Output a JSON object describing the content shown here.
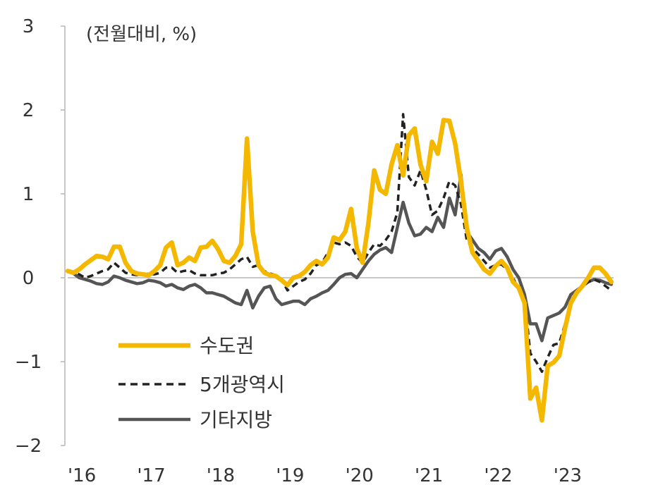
{
  "chart_data": {
    "type": "line",
    "title": "",
    "unit_label": "(전월대비, %)",
    "xlabel": "",
    "ylabel": "",
    "ylim": [
      -2,
      3
    ],
    "yticks": [
      3,
      2,
      1,
      0,
      -1,
      -2
    ],
    "ytick_labels": [
      "3",
      "2",
      "1",
      "0",
      "−1",
      "−2"
    ],
    "xticks": [
      "'16",
      "'17",
      "'18",
      "'19",
      "'20",
      "'21",
      "'22",
      "'23"
    ],
    "x_start": "2016-01",
    "grid": false,
    "legend_position": "lower-left",
    "series": [
      {
        "name": "수도권",
        "color": "#F5B800",
        "style": "solid",
        "values": [
          0.08,
          0.06,
          0.1,
          0.16,
          0.21,
          0.26,
          0.25,
          0.22,
          0.37,
          0.37,
          0.18,
          0.08,
          0.05,
          0.04,
          0.03,
          0.08,
          0.15,
          0.36,
          0.42,
          0.15,
          0.18,
          0.24,
          0.2,
          0.36,
          0.37,
          0.44,
          0.34,
          0.2,
          0.18,
          0.26,
          0.4,
          1.66,
          0.55,
          0.15,
          0.06,
          0.03,
          0.02,
          -0.03,
          -0.09,
          0.0,
          0.02,
          0.07,
          0.15,
          0.2,
          0.16,
          0.24,
          0.48,
          0.45,
          0.55,
          0.82,
          0.35,
          0.18,
          0.65,
          1.28,
          1.05,
          1.0,
          1.35,
          1.58,
          1.22,
          1.7,
          1.78,
          1.35,
          1.15,
          1.62,
          1.48,
          1.88,
          1.87,
          1.6,
          1.15,
          0.6,
          0.3,
          0.2,
          0.1,
          0.05,
          0.14,
          0.2,
          0.12,
          -0.05,
          -0.12,
          -0.3,
          -1.44,
          -1.31,
          -1.7,
          -1.05,
          -1.01,
          -0.93,
          -0.6,
          -0.3,
          -0.18,
          -0.1,
          0.0,
          0.12,
          0.12,
          0.05,
          -0.05
        ]
      },
      {
        "name": "5개광역시",
        "color": "#222222",
        "style": "dashed",
        "values": [
          0.08,
          0.07,
          0.04,
          0.0,
          0.02,
          0.05,
          0.08,
          0.1,
          0.18,
          0.12,
          0.06,
          0.04,
          0.03,
          0.03,
          0.05,
          0.04,
          0.06,
          0.12,
          0.12,
          0.06,
          0.08,
          0.09,
          0.05,
          0.03,
          0.03,
          0.03,
          0.05,
          0.06,
          0.1,
          0.16,
          0.22,
          0.25,
          0.13,
          0.15,
          0.08,
          0.05,
          0.03,
          -0.02,
          -0.15,
          -0.1,
          -0.05,
          -0.02,
          0.05,
          0.15,
          0.18,
          0.3,
          0.42,
          0.4,
          0.42,
          0.38,
          0.25,
          0.18,
          0.3,
          0.4,
          0.38,
          0.45,
          0.55,
          0.78,
          1.95,
          1.2,
          1.1,
          1.28,
          1.05,
          0.75,
          0.8,
          0.95,
          1.15,
          1.1,
          0.88,
          0.45,
          0.35,
          0.28,
          0.2,
          0.12,
          0.15,
          0.16,
          0.1,
          0.0,
          -0.15,
          -0.25,
          -0.9,
          -1.0,
          -1.12,
          -0.95,
          -0.8,
          -0.78,
          -0.55,
          -0.3,
          -0.18,
          -0.1,
          -0.05,
          -0.02,
          -0.05,
          -0.1,
          -0.15
        ]
      },
      {
        "name": "기타지방",
        "color": "#555555",
        "style": "solid",
        "values": [
          0.08,
          0.05,
          0.0,
          -0.02,
          -0.04,
          -0.07,
          -0.08,
          -0.05,
          0.02,
          0.0,
          -0.03,
          -0.05,
          -0.07,
          -0.06,
          -0.03,
          -0.04,
          -0.06,
          -0.1,
          -0.08,
          -0.12,
          -0.14,
          -0.1,
          -0.08,
          -0.12,
          -0.18,
          -0.18,
          -0.2,
          -0.22,
          -0.26,
          -0.3,
          -0.32,
          -0.15,
          -0.36,
          -0.22,
          -0.12,
          -0.1,
          -0.25,
          -0.32,
          -0.3,
          -0.28,
          -0.28,
          -0.32,
          -0.25,
          -0.22,
          -0.18,
          -0.15,
          -0.08,
          0.0,
          0.04,
          0.05,
          0.0,
          0.1,
          0.2,
          0.28,
          0.33,
          0.36,
          0.3,
          0.6,
          0.9,
          0.65,
          0.5,
          0.52,
          0.6,
          0.55,
          0.72,
          0.6,
          0.95,
          0.75,
          1.23,
          0.55,
          0.45,
          0.35,
          0.3,
          0.22,
          0.32,
          0.35,
          0.25,
          0.1,
          0.0,
          -0.2,
          -0.55,
          -0.55,
          -0.75,
          -0.48,
          -0.45,
          -0.42,
          -0.35,
          -0.2,
          -0.15,
          -0.1,
          -0.05,
          -0.02,
          -0.03,
          -0.06,
          -0.08
        ]
      }
    ]
  }
}
